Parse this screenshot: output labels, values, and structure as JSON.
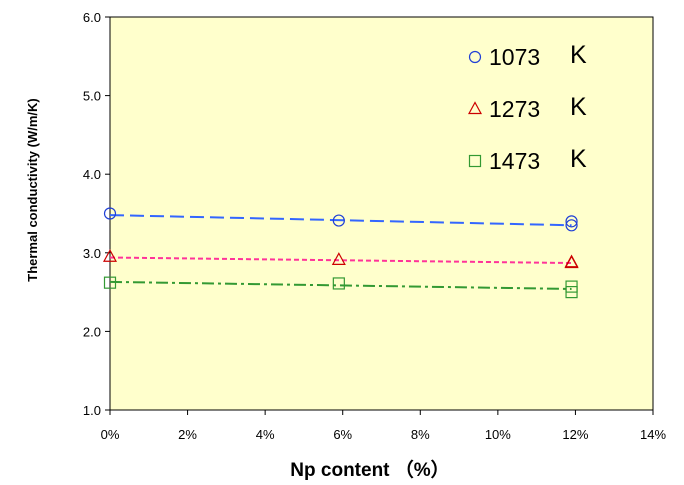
{
  "chart_data": {
    "type": "scatter",
    "title": "",
    "xlabel": "Np content （%）",
    "ylabel": "Thermal conductivity (W/m/K)",
    "xlim": [
      0,
      14
    ],
    "ylim": [
      1.0,
      6.0
    ],
    "x_ticks": [
      "0%",
      "2%",
      "4%",
      "6%",
      "8%",
      "10%",
      "12%",
      "14%"
    ],
    "y_ticks": [
      "1.0",
      "2.0",
      "3.0",
      "4.0",
      "5.0",
      "6.0"
    ],
    "grid": false,
    "plot_background": "#ffffcc",
    "legend": {
      "position": "top-right",
      "unit": "K"
    },
    "series": [
      {
        "name": "1073",
        "marker": "circle",
        "color": "#1f3fd6",
        "line_color": "#3366ff",
        "line_style": "dashed",
        "points": [
          {
            "x": 0.0,
            "y": 3.5
          },
          {
            "x": 5.9,
            "y": 3.41
          },
          {
            "x": 11.9,
            "y": 3.4
          },
          {
            "x": 11.9,
            "y": 3.35
          }
        ],
        "fit": [
          {
            "x": 0.0,
            "y": 3.48
          },
          {
            "x": 11.9,
            "y": 3.35
          }
        ]
      },
      {
        "name": "1273",
        "marker": "triangle",
        "color": "#cc0000",
        "line_color": "#ff3399",
        "line_style": "dotted",
        "points": [
          {
            "x": 0.0,
            "y": 2.95
          },
          {
            "x": 5.9,
            "y": 2.91
          },
          {
            "x": 11.9,
            "y": 2.88
          },
          {
            "x": 11.9,
            "y": 2.87
          }
        ],
        "fit": [
          {
            "x": 0.0,
            "y": 2.94
          },
          {
            "x": 11.9,
            "y": 2.87
          }
        ]
      },
      {
        "name": "1473",
        "marker": "square",
        "color": "#339933",
        "line_color": "#339933",
        "line_style": "dashdot",
        "points": [
          {
            "x": 0.0,
            "y": 2.62
          },
          {
            "x": 5.9,
            "y": 2.61
          },
          {
            "x": 11.9,
            "y": 2.57
          },
          {
            "x": 11.9,
            "y": 2.5
          }
        ],
        "fit": [
          {
            "x": 0.0,
            "y": 2.63
          },
          {
            "x": 11.9,
            "y": 2.54
          }
        ]
      }
    ]
  }
}
